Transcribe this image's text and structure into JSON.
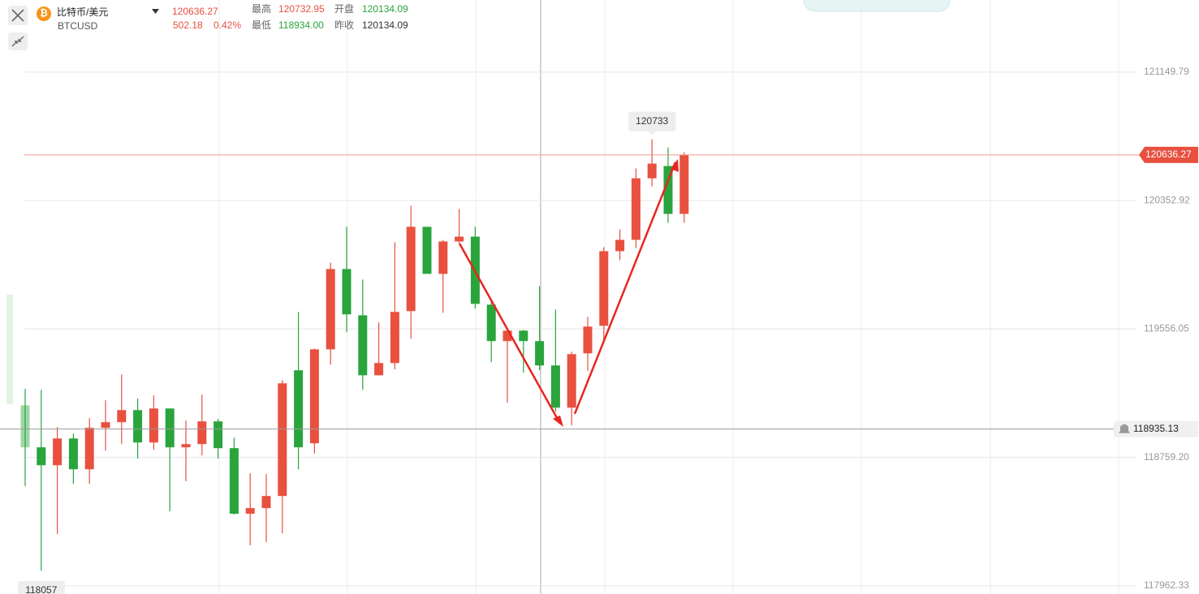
{
  "header": {
    "title": "比特币/美元",
    "symbol": "BTCUSD",
    "price": "120636.27",
    "change": "502.18",
    "change_pct": "0.42%",
    "high_label": "最高",
    "high": "120732.95",
    "low_label": "最低",
    "low": "118934.00",
    "open_label": "开盘",
    "open": "120134.09",
    "prev_close_label": "昨收",
    "prev_close": "120134.09"
  },
  "chart_data": {
    "type": "candlestick",
    "open": [
      119083,
      118822,
      118711,
      118877,
      118686,
      118943,
      118978,
      119053,
      118852,
      119063,
      118822,
      118842,
      118983,
      118817,
      118410,
      118445,
      118520,
      119300,
      118847,
      119430,
      119928,
      119641,
      119269,
      119345,
      119667,
      120190,
      119898,
      120099,
      120129,
      119707,
      119481,
      119546,
      119481,
      119330,
      119068,
      119405,
      119576,
      120039,
      120109,
      120491,
      120567,
      120270
    ],
    "high": [
      119184,
      119179,
      118948,
      118907,
      119003,
      119114,
      119274,
      119124,
      119144,
      119063,
      118988,
      119149,
      118998,
      118882,
      118661,
      118656,
      119239,
      119662,
      119435,
      119968,
      120190,
      119863,
      119597,
      120094,
      120320,
      120190,
      120109,
      120300,
      120190,
      119727,
      119551,
      119551,
      119822,
      119677,
      119415,
      119631,
      120064,
      120174,
      120552,
      120733,
      120682,
      120652
    ],
    "low": [
      118581,
      118057,
      118284,
      118596,
      118596,
      118802,
      118842,
      118752,
      118807,
      118425,
      118611,
      118772,
      118752,
      118405,
      118214,
      118234,
      118289,
      118686,
      118782,
      119335,
      119536,
      119179,
      119269,
      119305,
      119496,
      119898,
      119657,
      120089,
      119682,
      119350,
      119099,
      119285,
      119300,
      119043,
      118958,
      119295,
      119476,
      119983,
      120059,
      120441,
      120215,
      120215
    ],
    "close": [
      118822,
      118711,
      118877,
      118686,
      118943,
      118978,
      119053,
      118852,
      119063,
      118822,
      118842,
      118983,
      118817,
      118410,
      118445,
      118520,
      119219,
      118822,
      119430,
      119928,
      119647,
      119269,
      119345,
      119662,
      120190,
      119898,
      120099,
      120129,
      119712,
      119481,
      119546,
      119481,
      119330,
      119068,
      119400,
      119571,
      120039,
      120109,
      120491,
      120582,
      120270,
      120636.27
    ],
    "up_color": "#e8503f",
    "down_color": "#2aa43c",
    "ylim": [
      117912,
      121597
    ],
    "yticks": [
      121149.79,
      120352.92,
      119556.05,
      {
        "value": 118759.2,
        "label": "118759.20"
      },
      117962.33
    ],
    "grid": true,
    "price_line": 120636.27,
    "alert_line": 118935.13,
    "max_label": 120733,
    "min_label": 118057
  }
}
